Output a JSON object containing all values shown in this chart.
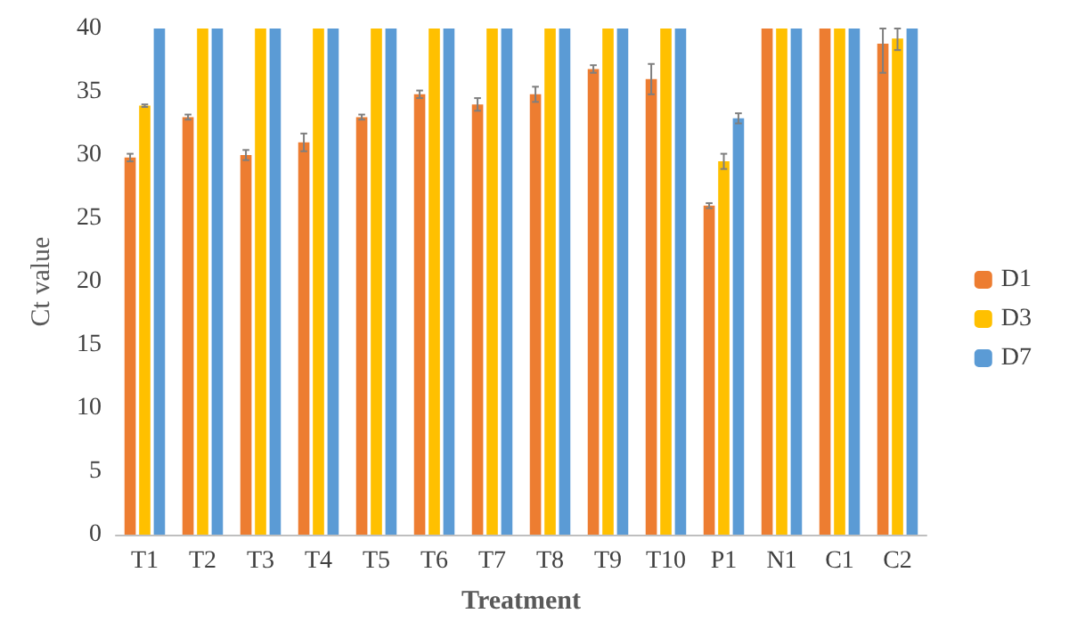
{
  "chart_data": {
    "type": "bar",
    "xlabel": "Treatment",
    "ylabel": "Ct value",
    "categories": [
      "T1",
      "T2",
      "T3",
      "T4",
      "T5",
      "T6",
      "T7",
      "T8",
      "T9",
      "T10",
      "P1",
      "N1",
      "C1",
      "C2"
    ],
    "ylim": [
      0,
      40
    ],
    "yticks": [
      0,
      5,
      10,
      15,
      20,
      25,
      30,
      35,
      40
    ],
    "grid": false,
    "legend": "right",
    "series": [
      {
        "name": "D1",
        "color": "#ed7d31",
        "values": [
          29.8,
          33.0,
          30.0,
          31.0,
          33.0,
          34.8,
          34.0,
          34.8,
          36.8,
          36.0,
          26.0,
          40,
          40,
          38.8
        ],
        "errors": [
          0.3,
          0.2,
          0.4,
          0.7,
          0.2,
          0.3,
          0.5,
          0.6,
          0.3,
          1.2,
          0.2,
          null,
          null,
          [
            36.5,
            40
          ]
        ]
      },
      {
        "name": "D3",
        "color": "#ffc000",
        "values": [
          33.9,
          40,
          40,
          40,
          40,
          40,
          40,
          40,
          40,
          40,
          29.5,
          40,
          40,
          39.2
        ],
        "errors": [
          0.1,
          null,
          null,
          null,
          null,
          null,
          null,
          null,
          null,
          null,
          0.6,
          null,
          null,
          [
            38.3,
            40
          ]
        ]
      },
      {
        "name": "D7",
        "color": "#5b9bd5",
        "values": [
          40,
          40,
          40,
          40,
          40,
          40,
          40,
          40,
          40,
          40,
          32.9,
          40,
          40,
          40
        ],
        "errors": [
          null,
          null,
          null,
          null,
          null,
          null,
          null,
          null,
          null,
          null,
          0.4,
          null,
          null,
          null
        ]
      }
    ]
  }
}
